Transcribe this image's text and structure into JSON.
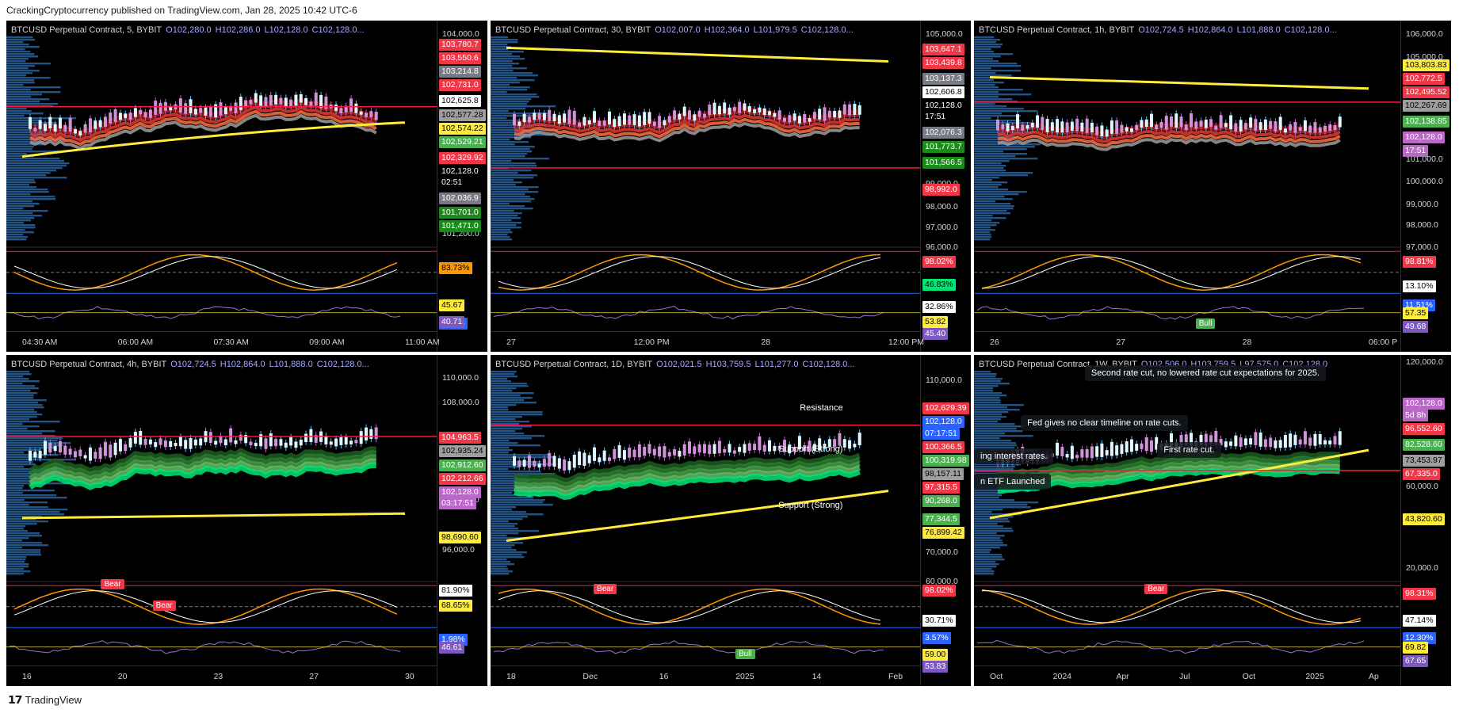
{
  "header": {
    "text": "CrackingCryptocurrency published on TradingView.com, Jan 28, 2025 10:42 UTC-6"
  },
  "footer": {
    "logo": "𝟭𝟳",
    "brand": "TradingView"
  },
  "panels": [
    {
      "id": "p1",
      "title": {
        "symbol": "BTCUSD Perpetual Contract, 5, BYBIT",
        "o": "O102,280.0",
        "h": "H102,286.0",
        "l": "L102,128.0",
        "c": "C102,128.0..."
      },
      "price_ticks": [
        "104,000.0",
        "101,200.0"
      ],
      "labels": [
        {
          "t": "103,780.7",
          "bg": "#f23645",
          "fg": "#ffffff"
        },
        {
          "t": "103,550.6",
          "bg": "#f23645",
          "fg": "#ffffff"
        },
        {
          "t": "103,214.8",
          "bg": "#787b86",
          "fg": "#ffffff"
        },
        {
          "t": "102,731.0",
          "bg": "#f23645",
          "fg": "#ffffff"
        },
        {
          "t": "102,625.8",
          "bg": "#ffffff",
          "fg": "#000000"
        },
        {
          "t": "102,577.28",
          "bg": "#9e9e9e",
          "fg": "#000000"
        },
        {
          "t": "102,574.22",
          "bg": "#ffeb3b",
          "fg": "#000000"
        },
        {
          "t": "102,529.21",
          "bg": "#4caf50",
          "fg": "#ffffff"
        },
        {
          "t": "102,329.92",
          "bg": "#f23645",
          "fg": "#ffffff"
        },
        {
          "t": "102,128.0",
          "bg": "#000000",
          "fg": "#ffffff"
        },
        {
          "t": "02:51",
          "bg": "#000000",
          "fg": "#ffffff"
        },
        {
          "t": "102,036.9",
          "bg": "#787b86",
          "fg": "#ffffff"
        },
        {
          "t": "101,701.0",
          "bg": "#1b8a1b",
          "fg": "#ffffff"
        },
        {
          "t": "101,471.0",
          "bg": "#1b8a1b",
          "fg": "#ffffff"
        }
      ],
      "osc_labels": [
        {
          "t": "83.73%",
          "bg": "#ff9800",
          "fg": "#000000"
        },
        {
          "t": "1.98%",
          "bg": "#2962ff",
          "fg": "#ffffff"
        },
        {
          "t": "45.67",
          "bg": "#ffeb3b",
          "fg": "#000000"
        },
        {
          "t": "40.71",
          "bg": "#7e57c2",
          "fg": "#ffffff"
        }
      ],
      "time_ticks": [
        "04:30 AM",
        "06:00 AM",
        "07:30 AM",
        "09:00 AM",
        "11:00 AM"
      ],
      "annotations": [],
      "tags": []
    },
    {
      "id": "p2",
      "title": {
        "symbol": "BTCUSD Perpetual Contract, 30, BYBIT",
        "o": "O102,007.0",
        "h": "H102,364.0",
        "l": "L101,979.5",
        "c": "C102,128.0..."
      },
      "price_ticks": [
        "105,000.0",
        "99,000.0",
        "98,000.0",
        "97,000.0",
        "96,000.0"
      ],
      "labels": [
        {
          "t": "103,647.1",
          "bg": "#f23645",
          "fg": "#ffffff"
        },
        {
          "t": "103,439.8",
          "bg": "#f23645",
          "fg": "#ffffff"
        },
        {
          "t": "103,137.3",
          "bg": "#787b86",
          "fg": "#ffffff"
        },
        {
          "t": "102,606.8",
          "bg": "#ffffff",
          "fg": "#000000"
        },
        {
          "t": "102,128.0",
          "bg": "#000000",
          "fg": "#ffffff"
        },
        {
          "t": "17:51",
          "bg": "#000000",
          "fg": "#ffffff"
        },
        {
          "t": "102,076.3",
          "bg": "#787b86",
          "fg": "#ffffff"
        },
        {
          "t": "101,773.7",
          "bg": "#1b8a1b",
          "fg": "#ffffff"
        },
        {
          "t": "101,566.5",
          "bg": "#1b8a1b",
          "fg": "#ffffff"
        },
        {
          "t": "98,992.0",
          "bg": "#f23645",
          "fg": "#ffffff"
        }
      ],
      "osc_labels": [
        {
          "t": "98.02%",
          "bg": "#f23645",
          "fg": "#ffffff"
        },
        {
          "t": "46.83%",
          "bg": "#00e676",
          "fg": "#000000"
        },
        {
          "t": "32.86%",
          "bg": "#ffffff",
          "fg": "#000000"
        },
        {
          "t": "53.82",
          "bg": "#ffeb3b",
          "fg": "#000000"
        },
        {
          "t": "45.40",
          "bg": "#7e57c2",
          "fg": "#ffffff"
        }
      ],
      "time_ticks": [
        "27",
        "12:00 PM",
        "28",
        "12:00 PM"
      ],
      "annotations": [],
      "tags": []
    },
    {
      "id": "p3",
      "title": {
        "symbol": "BTCUSD Perpetual Contract, 1h, BYBIT",
        "o": "O102,724.5",
        "h": "H102,864.0",
        "l": "L101,888.0",
        "c": "C102,128.0..."
      },
      "price_ticks": [
        "106,000.0",
        "105,000.0",
        "101,000.0",
        "100,000.0",
        "99,000.0",
        "98,000.0",
        "97,000.0"
      ],
      "labels": [
        {
          "t": "103,803.83",
          "bg": "#ffeb3b",
          "fg": "#000000"
        },
        {
          "t": "102,772.5",
          "bg": "#f23645",
          "fg": "#ffffff"
        },
        {
          "t": "102,495.52",
          "bg": "#f23645",
          "fg": "#ffffff"
        },
        {
          "t": "102,267.69",
          "bg": "#9e9e9e",
          "fg": "#000000"
        },
        {
          "t": "102,138.85",
          "bg": "#4caf50",
          "fg": "#ffffff"
        },
        {
          "t": "102,128.0",
          "bg": "#ba68c8",
          "fg": "#ffffff"
        },
        {
          "t": "17:51",
          "bg": "#ba68c8",
          "fg": "#ffffff"
        }
      ],
      "osc_labels": [
        {
          "t": "98.81%",
          "bg": "#f23645",
          "fg": "#ffffff"
        },
        {
          "t": "13.10%",
          "bg": "#ffffff",
          "fg": "#000000"
        },
        {
          "t": "11.51%",
          "bg": "#2962ff",
          "fg": "#ffffff"
        },
        {
          "t": "57.35",
          "bg": "#ffeb3b",
          "fg": "#000000"
        },
        {
          "t": "49.68",
          "bg": "#7e57c2",
          "fg": "#ffffff"
        }
      ],
      "time_ticks": [
        "26",
        "27",
        "28",
        "06:00 P"
      ],
      "annotations": [],
      "tags": [
        {
          "t": "Bull",
          "bg": "#4caf50"
        }
      ]
    },
    {
      "id": "p4",
      "title": {
        "symbol": "BTCUSD Perpetual Contract, 4h, BYBIT",
        "o": "O102,724.5",
        "h": "H102,864.0",
        "l": "L101,888.0",
        "c": "C102,128.0..."
      },
      "price_ticks": [
        "110,000.0",
        "108,000.0",
        "100,000.0",
        "96,000.0"
      ],
      "labels": [
        {
          "t": "104,963.5",
          "bg": "#f23645",
          "fg": "#ffffff"
        },
        {
          "t": "102,935.24",
          "bg": "#9e9e9e",
          "fg": "#000000"
        },
        {
          "t": "102,912.60",
          "bg": "#4caf50",
          "fg": "#ffffff"
        },
        {
          "t": "102,212.66",
          "bg": "#f23645",
          "fg": "#ffffff"
        },
        {
          "t": "102,128.0",
          "bg": "#ba68c8",
          "fg": "#ffffff"
        },
        {
          "t": "03:17:51",
          "bg": "#ba68c8",
          "fg": "#ffffff"
        },
        {
          "t": "98,690.60",
          "bg": "#ffeb3b",
          "fg": "#000000"
        }
      ],
      "osc_labels": [
        {
          "t": "81.90%",
          "bg": "#ffffff",
          "fg": "#000000"
        },
        {
          "t": "68.65%",
          "bg": "#ffeb3b",
          "fg": "#000000"
        },
        {
          "t": "1.98%",
          "bg": "#2962ff",
          "fg": "#ffffff"
        },
        {
          "t": "46.61",
          "bg": "#7e57c2",
          "fg": "#ffffff"
        }
      ],
      "time_ticks": [
        "16",
        "20",
        "23",
        "27",
        "30"
      ],
      "annotations": [],
      "tags": [
        {
          "t": "Bear",
          "bg": "#f23645"
        },
        {
          "t": "Bear",
          "bg": "#f23645"
        }
      ]
    },
    {
      "id": "p5",
      "title": {
        "symbol": "BTCUSD Perpetual Contract, 1D, BYBIT",
        "o": "O102,021.5",
        "h": "H103,759.5",
        "l": "L101,277.0",
        "c": "C102,128.0..."
      },
      "price_ticks": [
        "110,000.0",
        "70,000.0",
        "60,000.0"
      ],
      "labels": [
        {
          "t": "102,629.39",
          "bg": "#f23645",
          "fg": "#ffffff"
        },
        {
          "t": "102,128.0",
          "bg": "#2962ff",
          "fg": "#ffffff"
        },
        {
          "t": "07:17:51",
          "bg": "#2962ff",
          "fg": "#ffffff"
        },
        {
          "t": "100,366.5",
          "bg": "#f23645",
          "fg": "#ffffff"
        },
        {
          "t": "100,319.98",
          "bg": "#4caf50",
          "fg": "#ffffff"
        },
        {
          "t": "98,157.11",
          "bg": "#9e9e9e",
          "fg": "#000000"
        },
        {
          "t": "97,315.5",
          "bg": "#f23645",
          "fg": "#ffffff"
        },
        {
          "t": "90,268.0",
          "bg": "#4caf50",
          "fg": "#ffffff"
        },
        {
          "t": "77,344.5",
          "bg": "#4caf50",
          "fg": "#ffffff"
        },
        {
          "t": "76,899.42",
          "bg": "#ffeb3b",
          "fg": "#000000"
        }
      ],
      "osc_labels": [
        {
          "t": "98.02%",
          "bg": "#f23645",
          "fg": "#ffffff"
        },
        {
          "t": "30.71%",
          "bg": "#ffffff",
          "fg": "#000000"
        },
        {
          "t": "3.57%",
          "bg": "#2962ff",
          "fg": "#ffffff"
        },
        {
          "t": "59.00",
          "bg": "#ffeb3b",
          "fg": "#000000"
        },
        {
          "t": "53.83",
          "bg": "#7e57c2",
          "fg": "#ffffff"
        }
      ],
      "time_ticks": [
        "18",
        "Dec",
        "16",
        "2025",
        "14",
        "Feb"
      ],
      "annotations": [
        {
          "t": "Resistance"
        },
        {
          "t": "Support (Strong)"
        },
        {
          "t": "Support (Strong)"
        }
      ],
      "tags": [
        {
          "t": "Bear",
          "bg": "#f23645"
        },
        {
          "t": "Bull",
          "bg": "#4caf50"
        }
      ]
    },
    {
      "id": "p6",
      "title": {
        "symbol": "BTCUSD Perpetual Contract, 1W, BYBIT",
        "o": "O102,506.0",
        "h": "H103,759.5",
        "l": "L97,575.0",
        "c": "C102,128.0"
      },
      "price_ticks": [
        "120,000.0",
        "60,000.0",
        "20,000.0"
      ],
      "labels": [
        {
          "t": "102,128.0",
          "bg": "#ba68c8",
          "fg": "#ffffff"
        },
        {
          "t": "5d 8h",
          "bg": "#ba68c8",
          "fg": "#ffffff"
        },
        {
          "t": "96,552.60",
          "bg": "#f23645",
          "fg": "#ffffff"
        },
        {
          "t": "82,528.60",
          "bg": "#4caf50",
          "fg": "#ffffff"
        },
        {
          "t": "73,453.97",
          "bg": "#9e9e9e",
          "fg": "#000000"
        },
        {
          "t": "67,335.0",
          "bg": "#f23645",
          "fg": "#ffffff"
        },
        {
          "t": "43,820.60",
          "bg": "#ffeb3b",
          "fg": "#000000"
        }
      ],
      "osc_labels": [
        {
          "t": "98.31%",
          "bg": "#f23645",
          "fg": "#ffffff"
        },
        {
          "t": "47.14%",
          "bg": "#ffffff",
          "fg": "#000000"
        },
        {
          "t": "12.30%",
          "bg": "#2962ff",
          "fg": "#ffffff"
        },
        {
          "t": "69.82",
          "bg": "#ffeb3b",
          "fg": "#000000"
        },
        {
          "t": "67.65",
          "bg": "#7e57c2",
          "fg": "#ffffff"
        }
      ],
      "time_ticks": [
        "Oct",
        "2024",
        "Apr",
        "Jul",
        "Oct",
        "2025",
        "Ap"
      ],
      "annotations": [
        {
          "t": "Second rate cut, no lowered rate cut expectations for 2025."
        },
        {
          "t": "Fed gives no clear timeline on rate cuts."
        },
        {
          "t": "ing interest rates."
        },
        {
          "t": "First rate cut."
        },
        {
          "t": "n ETF Launched"
        }
      ],
      "tags": [
        {
          "t": "Bear",
          "bg": "#f23645"
        }
      ]
    }
  ]
}
